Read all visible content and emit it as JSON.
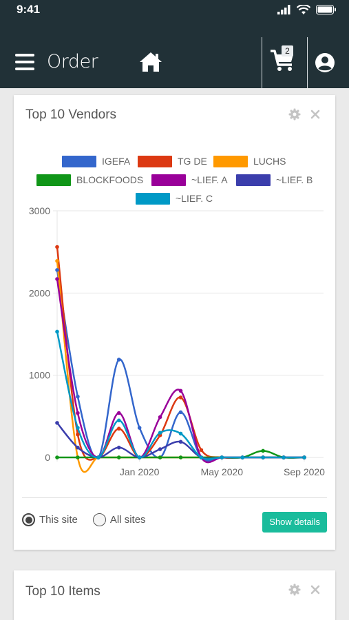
{
  "status_bar": {
    "time": "9:41"
  },
  "app_bar": {
    "title": "Order",
    "cart_count": "2"
  },
  "vendors_card": {
    "title": "Top 10 Vendors",
    "radio_options": [
      "This site",
      "All sites"
    ],
    "selected_option": "This site",
    "details_button": "Show details"
  },
  "items_card": {
    "title": "Top 10 Items"
  },
  "colors": {
    "header_bg": "#213137",
    "accent": "#1abc9c"
  },
  "chart_data": {
    "type": "line",
    "legend_position": "top",
    "grid": true,
    "ylim": [
      0,
      3000
    ],
    "y_ticks": [
      "0",
      "1000",
      "2000",
      "3000"
    ],
    "x_ticks": [
      "Jan 2020",
      "May 2020",
      "Sep 2020"
    ],
    "x": [
      "Sep 2019",
      "Oct 2019",
      "Nov 2019",
      "Dec 2019",
      "Jan 2020",
      "Feb 2020",
      "Mar 2020",
      "Apr 2020",
      "May 2020",
      "Jun 2020",
      "Jul 2020",
      "Aug 2020",
      "Sep 2020"
    ],
    "series": [
      {
        "name": "IGEFA",
        "color": "#3366cc",
        "values": [
          2280,
          740,
          0,
          1190,
          360,
          0,
          550,
          0,
          0,
          0,
          0,
          0,
          0
        ]
      },
      {
        "name": "TG DE",
        "color": "#dc3912",
        "values": [
          2560,
          280,
          0,
          350,
          0,
          270,
          730,
          90,
          0,
          0,
          0,
          0,
          0
        ]
      },
      {
        "name": "LUCHS",
        "color": "#ff9900",
        "values": [
          2390,
          0,
          0,
          0,
          0,
          0,
          0,
          0,
          0,
          0,
          0,
          0,
          0
        ]
      },
      {
        "name": "BLOCKFOODS",
        "color": "#109618",
        "values": [
          0,
          0,
          0,
          0,
          0,
          0,
          0,
          0,
          0,
          0,
          80,
          0,
          0
        ]
      },
      {
        "name": "~LIEF. A",
        "color": "#990099",
        "values": [
          2170,
          540,
          0,
          540,
          0,
          490,
          810,
          0,
          0,
          0,
          0,
          0,
          0
        ]
      },
      {
        "name": "~LIEF. B",
        "color": "#3b3eac",
        "values": [
          420,
          120,
          0,
          120,
          0,
          100,
          190,
          0,
          0,
          0,
          0,
          0,
          0
        ]
      },
      {
        "name": "~LIEF. C",
        "color": "#0099c6",
        "values": [
          1530,
          360,
          0,
          450,
          0,
          300,
          290,
          0,
          0,
          0,
          0,
          0,
          0
        ]
      }
    ]
  }
}
